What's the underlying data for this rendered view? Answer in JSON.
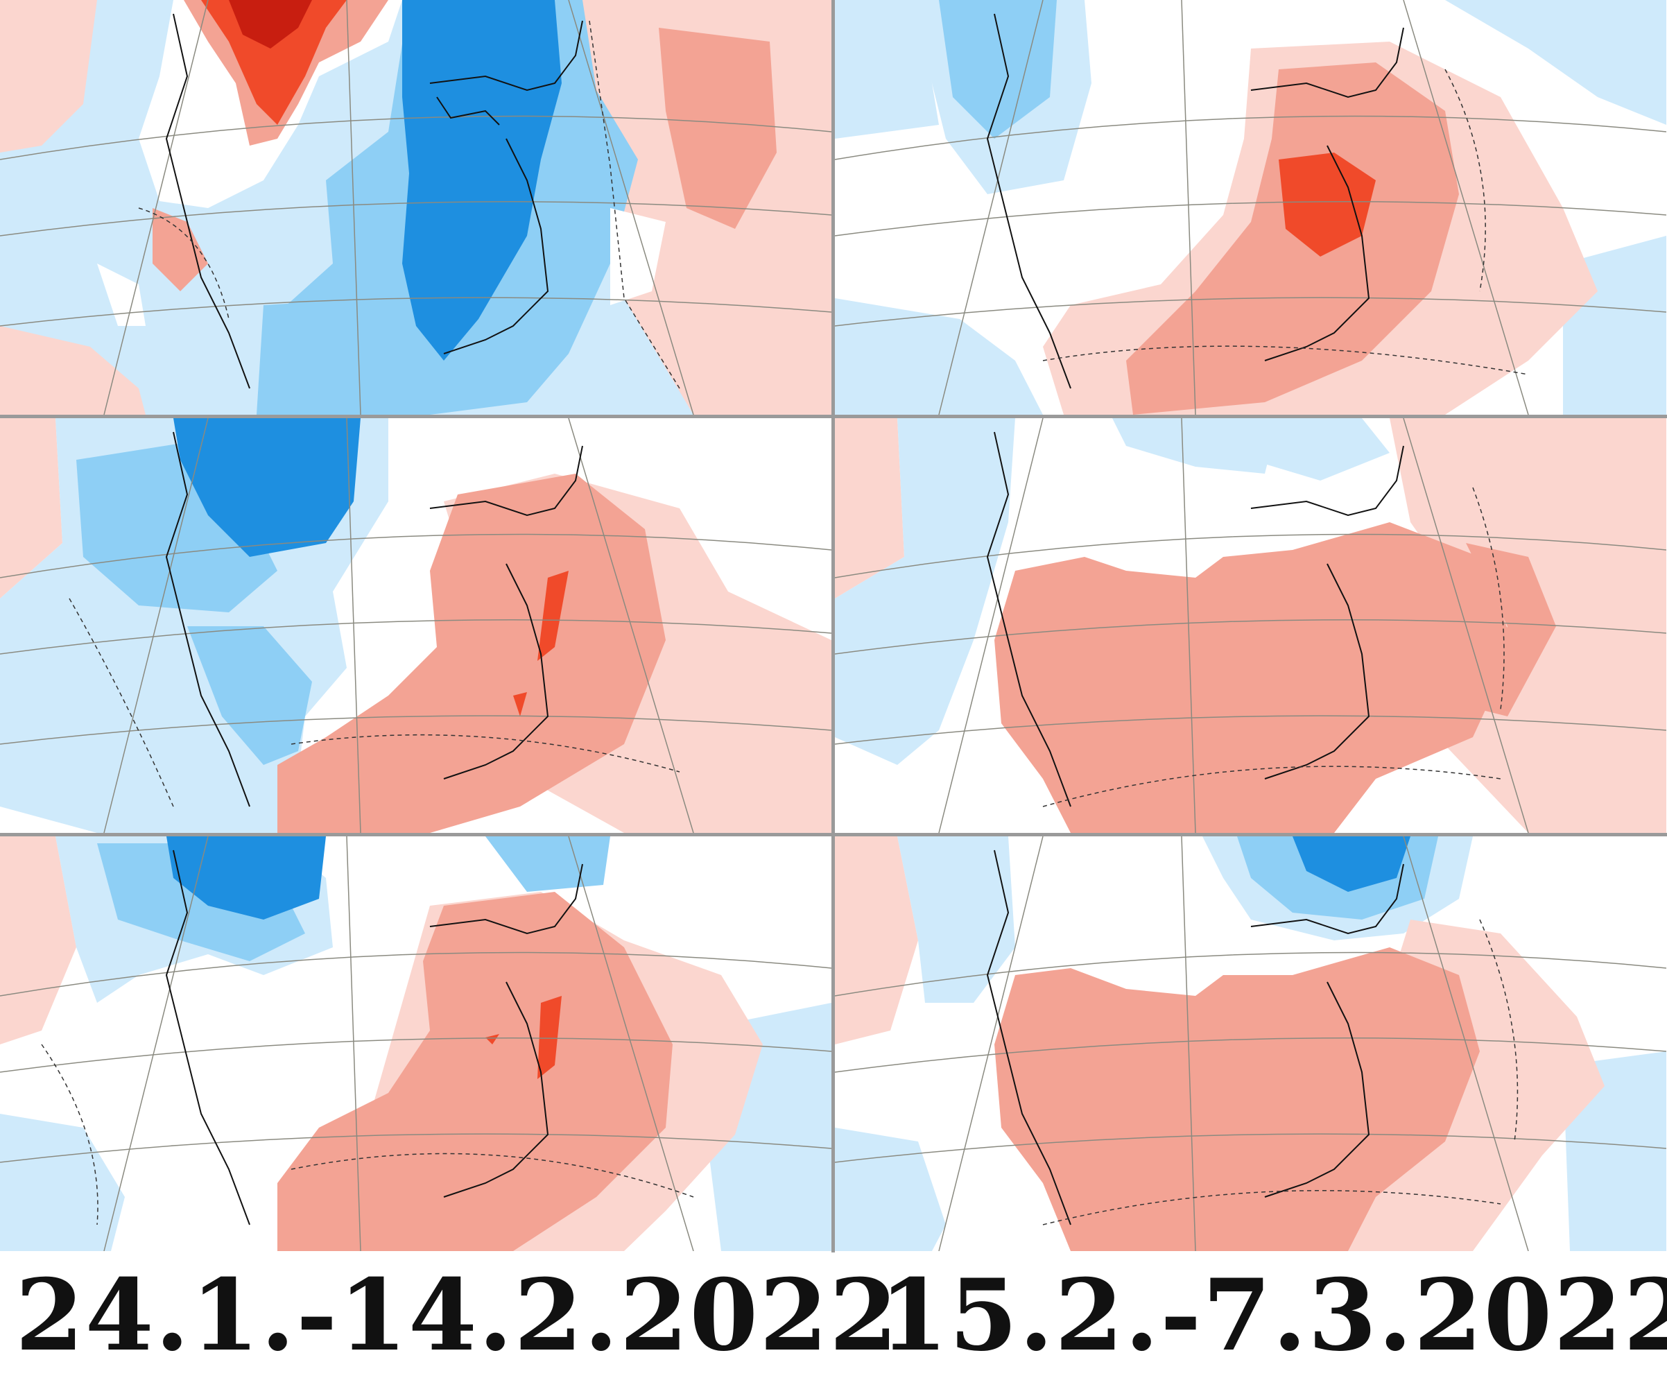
{
  "colors": {
    "deep_blue": "#1e8fe0",
    "mid_blue": "#8ecff5",
    "light_blue": "#cfeafb",
    "deep_red": "#f04a2a",
    "dark_red": "#c81e10",
    "mid_red": "#f3a394",
    "light_red": "#fbd6cf",
    "white": "#ffffff",
    "coast_line": "#111111",
    "grid_line": "#8a8a80"
  },
  "panels": [
    {
      "id": "week1-left",
      "column": "left",
      "row": 1,
      "pattern": "cold-east-warm-northwest"
    },
    {
      "id": "week1-right",
      "column": "right",
      "row": 1,
      "pattern": "warm-east-core"
    },
    {
      "id": "week2-left",
      "column": "left",
      "row": 2,
      "pattern": "cold-northwest-warm-southeast"
    },
    {
      "id": "week2-right",
      "column": "right",
      "row": 2,
      "pattern": "warm-central-southeast"
    },
    {
      "id": "week3-left",
      "column": "left",
      "row": 3,
      "pattern": "cold-north-warm-southeast"
    },
    {
      "id": "week3-right",
      "column": "right",
      "row": 3,
      "pattern": "cold-northeast-warm-south"
    }
  ],
  "captions": {
    "left": "24.1.-14.2.2022",
    "right": "15.2.-7.3.2022"
  }
}
